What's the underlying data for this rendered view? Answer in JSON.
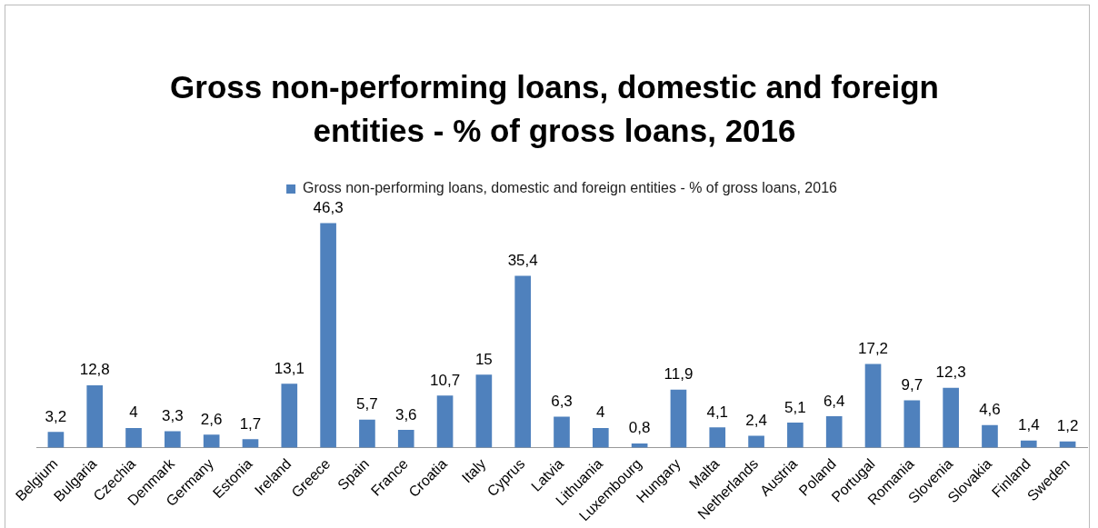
{
  "chart_data": {
    "type": "bar",
    "title": "Gross non-performing loans, domestic and foreign entities - % of gross loans, 2016",
    "categories": [
      "Belgium",
      "Bulgaria",
      "Czechia",
      "Denmark",
      "Germany",
      "Estonia",
      "Ireland",
      "Greece",
      "Spain",
      "France",
      "Croatia",
      "Italy",
      "Cyprus",
      "Latvia",
      "Lithuania",
      "Luxembourg",
      "Hungary",
      "Malta",
      "Netherlands",
      "Austria",
      "Poland",
      "Portugal",
      "Romania",
      "Slovenia",
      "Slovakia",
      "Finland",
      "Sweden"
    ],
    "series": [
      {
        "name": "Gross non-performing loans, domestic and foreign entities - % of gross loans, 2016",
        "color": "#4f81bd",
        "values": [
          3.2,
          12.8,
          4,
          3.3,
          2.6,
          1.7,
          13.1,
          46.3,
          5.7,
          3.6,
          10.7,
          15,
          35.4,
          6.3,
          4,
          0.8,
          11.9,
          4.1,
          2.4,
          5.1,
          6.4,
          17.2,
          9.7,
          12.3,
          4.6,
          1.4,
          1.2
        ],
        "value_labels": [
          "3,2",
          "12,8",
          "4",
          "3,3",
          "2,6",
          "1,7",
          "13,1",
          "46,3",
          "5,7",
          "3,6",
          "10,7",
          "15",
          "35,4",
          "6,3",
          "4",
          "0,8",
          "11,9",
          "4,1",
          "2,4",
          "5,1",
          "6,4",
          "17,2",
          "9,7",
          "12,3",
          "4,6",
          "1,4",
          "1,2"
        ]
      }
    ],
    "legend": "top",
    "grid": false
  }
}
